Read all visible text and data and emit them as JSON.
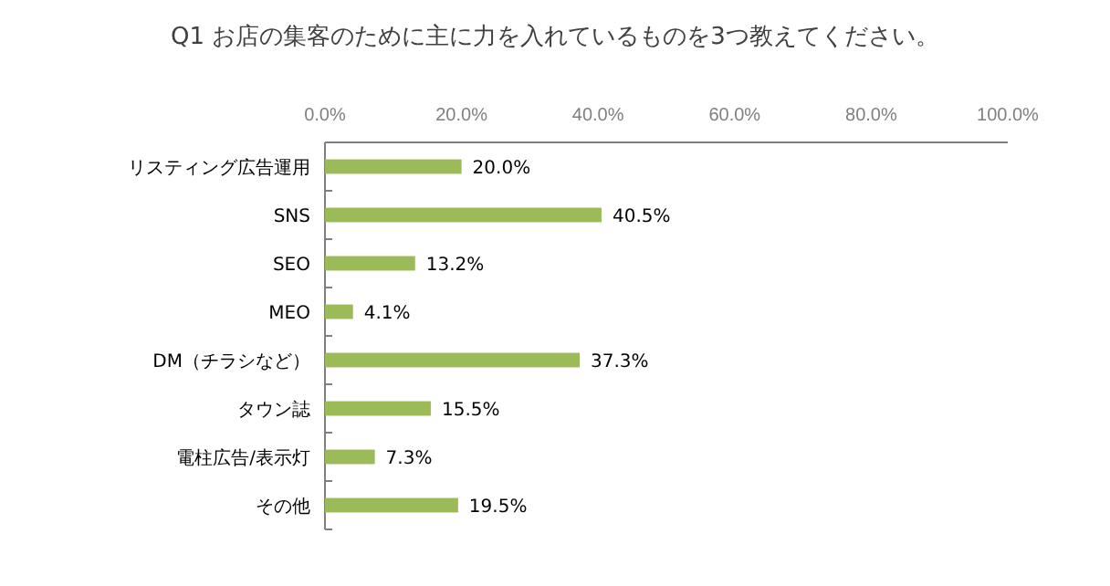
{
  "chart_data": {
    "type": "bar",
    "orientation": "horizontal",
    "title": "Q1 お店の集客のために主に力を入れているものを3つ教えてください。",
    "categories": [
      "リスティング広告運用",
      "SNS",
      "SEO",
      "MEO",
      "DM（チラシなど）",
      "タウン誌",
      "電柱広告/表示灯",
      "その他"
    ],
    "values": [
      20.0,
      40.5,
      13.2,
      4.1,
      37.3,
      15.5,
      7.3,
      19.5
    ],
    "value_labels": [
      "20.0%",
      "40.5%",
      "13.2%",
      "4.1%",
      "37.3%",
      "15.5%",
      "7.3%",
      "19.5%"
    ],
    "color": "#9bbb59",
    "xlim": [
      0,
      100
    ],
    "xticks": [
      {
        "value": 0,
        "label": "0.0%"
      },
      {
        "value": 20,
        "label": "20.0%"
      },
      {
        "value": 40,
        "label": "40.0%"
      },
      {
        "value": 60,
        "label": "60.0%"
      },
      {
        "value": 80,
        "label": "80.0%"
      },
      {
        "value": 100,
        "label": "100.0%"
      }
    ],
    "grid": false
  }
}
